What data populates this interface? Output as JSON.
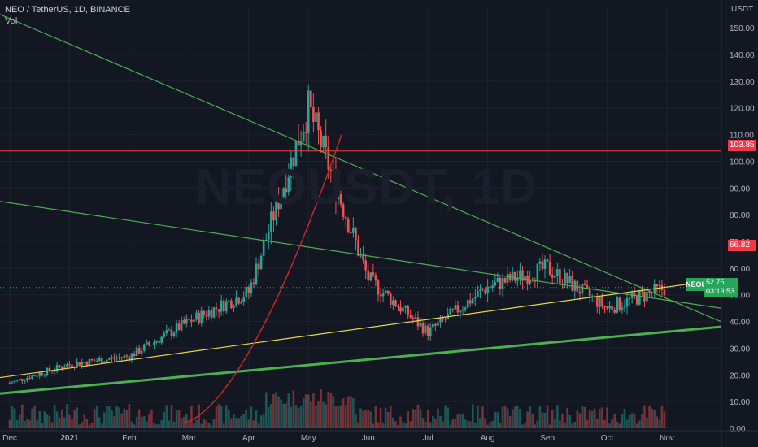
{
  "header": {
    "title": "NEO / TetherUS, 1D, BINANCE",
    "indicator": "Vol"
  },
  "watermark": "NEOUSDT, 1D",
  "axis": {
    "unit": "USDT"
  },
  "tags": {
    "upper_level": "103.85",
    "lower_level": "66.82",
    "symbol": "NEOUSDT",
    "last_price": "52.75",
    "countdown": "03:19:53"
  },
  "colors": {
    "background": "#131722",
    "up": "#26a69a",
    "down": "#ef5350",
    "trend_green": "#4caf50",
    "trend_yellow": "#e6d84a",
    "level_red": "#f44336",
    "curve_red": "#c62828"
  },
  "chart_data": {
    "type": "candlestick",
    "title": "NEO / TetherUS, 1D, BINANCE",
    "y_ticks": [
      0,
      10,
      20,
      30,
      40,
      50,
      60,
      70,
      80,
      90,
      100,
      110,
      120,
      130,
      140,
      150
    ],
    "ylim": [
      0,
      155
    ],
    "x_ticks": [
      "Dec",
      "2021",
      "Feb",
      "Mar",
      "Apr",
      "May",
      "Jun",
      "Jul",
      "Aug",
      "Sep",
      "Oct",
      "Nov"
    ],
    "horizontal_levels": [
      103.85,
      66.82
    ],
    "last_price": 52.75,
    "price_path_keypoints": [
      {
        "month": "Dec",
        "price": 17
      },
      {
        "month": "2021",
        "price": 24
      },
      {
        "month": "Feb",
        "price": 27
      },
      {
        "month": "Mar",
        "price": 40
      },
      {
        "month": "Apr",
        "price": 51
      },
      {
        "month": "May",
        "price": 120
      },
      {
        "month": "Jun",
        "price": 56
      },
      {
        "month": "Jul",
        "price": 36
      },
      {
        "month": "Aug",
        "price": 53
      },
      {
        "month": "Sep",
        "price": 60
      },
      {
        "month": "Oct",
        "price": 45
      },
      {
        "month": "Nov",
        "price": 52.75
      }
    ]
  }
}
